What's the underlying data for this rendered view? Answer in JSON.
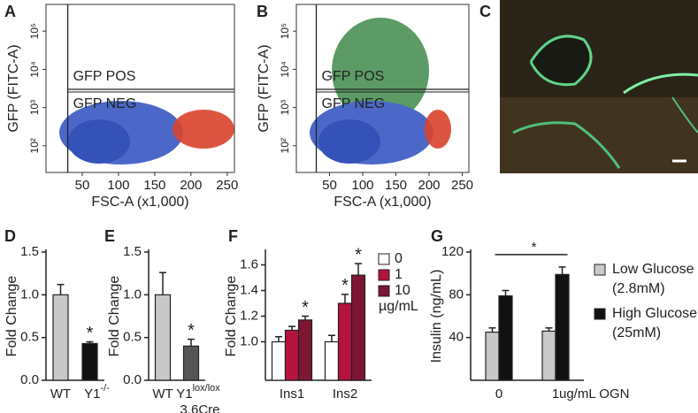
{
  "image_panel": {
    "label": "C"
  },
  "chart_data": [
    {
      "type": "cytometry",
      "panel_label": "A",
      "xlabel": "FSC-A (x1,000)",
      "ylabel": "GFP (FITC-A)",
      "xlim": [
        0,
        260
      ],
      "xticks": [
        50,
        100,
        150,
        200,
        250
      ],
      "ylim": [
        20,
        500000
      ],
      "y_log": true,
      "yticks": [
        {
          "value": 100,
          "label": "10²"
        },
        {
          "value": 1000,
          "label": "10³"
        },
        {
          "value": 10000,
          "label": "10⁴"
        },
        {
          "value": 100000,
          "label": "10⁵"
        }
      ],
      "gate_x": 30,
      "gate_y": 3000,
      "gates": [
        "GFP POS",
        "GFP NEG"
      ]
    },
    {
      "type": "cytometry",
      "panel_label": "B",
      "xlabel": "FSC-A (x1,000)",
      "ylabel": "GFP (FITC-A)",
      "xlim": [
        0,
        260
      ],
      "xticks": [
        50,
        100,
        150,
        200,
        250
      ],
      "ylim": [
        20,
        500000
      ],
      "y_log": true,
      "yticks": [
        {
          "value": 100,
          "label": "10²"
        },
        {
          "value": 1000,
          "label": "10³"
        },
        {
          "value": 10000,
          "label": "10⁴"
        },
        {
          "value": 100000,
          "label": "10⁵"
        }
      ],
      "gate_x": 30,
      "gate_y": 3000,
      "gates": [
        "GFP POS",
        "GFP NEG"
      ]
    },
    {
      "type": "bar",
      "panel_label": "D",
      "ylabel": "Fold Change",
      "categories": [
        "WT",
        "Y1"
      ],
      "category_superscripts": [
        null,
        "-/-"
      ],
      "ylim": [
        0,
        1.5
      ],
      "yticks": [
        {
          "value": 0,
          "label": "0.0"
        },
        0.5,
        {
          "value": 1,
          "label": "1.0"
        },
        1.5
      ],
      "series": [
        {
          "colors": [
            "#c8c8c8",
            "#111111"
          ],
          "values": [
            1.0,
            0.43
          ],
          "errors": [
            0.12,
            0.02
          ],
          "significance": [
            null,
            "*"
          ]
        }
      ]
    },
    {
      "type": "bar",
      "panel_label": "E",
      "ylabel": "Fold Change",
      "categories": [
        "WT",
        "Y1"
      ],
      "category_superscripts": [
        null,
        "lox/lox"
      ],
      "category_sublines": [
        null,
        "3.6Cre"
      ],
      "ylim": [
        0,
        1.5
      ],
      "yticks": [
        {
          "value": 0,
          "label": "0.0"
        },
        0.5,
        {
          "value": 1,
          "label": "1.0"
        },
        1.5
      ],
      "series": [
        {
          "colors": [
            "#c8c8c8",
            "#555555"
          ],
          "values": [
            1.0,
            0.4
          ],
          "errors": [
            0.26,
            0.08
          ],
          "significance": [
            null,
            "*"
          ]
        }
      ]
    },
    {
      "type": "bar",
      "panel_label": "F",
      "ylabel": "Fold Change",
      "legend_unit": "µg/mL",
      "categories": [
        "Ins1",
        "Ins2"
      ],
      "ylim": [
        0.7,
        1.7
      ],
      "yticks": [
        {
          "value": 1,
          "label": "1.0"
        },
        1.2,
        1.4,
        1.6
      ],
      "series": [
        {
          "name": "0",
          "color": "#ffffff",
          "values": [
            1.0,
            1.0
          ],
          "errors": [
            0.04,
            0.05
          ],
          "significance": [
            null,
            null
          ]
        },
        {
          "name": "1",
          "color": "#b5123e",
          "values": [
            1.09,
            1.3
          ],
          "errors": [
            0.03,
            0.07
          ],
          "significance": [
            null,
            "*"
          ]
        },
        {
          "name": "10",
          "color": "#7d1533",
          "values": [
            1.17,
            1.52
          ],
          "errors": [
            0.03,
            0.09
          ],
          "significance": [
            "*",
            "*"
          ]
        }
      ]
    },
    {
      "type": "bar",
      "panel_label": "G",
      "ylabel": "Insulin (ng/mL)",
      "xlabel": "ug/mL OGN",
      "categories": [
        "0",
        "1"
      ],
      "ylim": [
        0,
        120
      ],
      "yticks": [
        40,
        80,
        120
      ],
      "bracket": "*",
      "series": [
        {
          "name": "Low Glucose",
          "detail": "(2.8mM)",
          "color": "#c8c8c8",
          "values": [
            45,
            46
          ],
          "errors": [
            4,
            3
          ]
        },
        {
          "name": "High Glucose",
          "detail": "(25mM)",
          "color": "#111111",
          "values": [
            79,
            99
          ],
          "errors": [
            5,
            7
          ]
        }
      ]
    }
  ]
}
